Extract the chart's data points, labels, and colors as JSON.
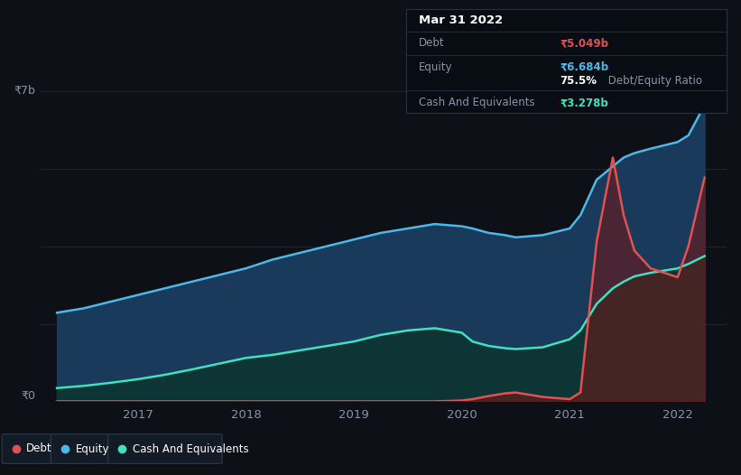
{
  "bg_color": "#0d1117",
  "plot_bg_color": "#0d1117",
  "ylabel_7b": "₹7b",
  "ylabel_0": "₹0",
  "x_ticks": [
    2017,
    2018,
    2019,
    2020,
    2021,
    2022
  ],
  "xlim": [
    2016.1,
    2022.45
  ],
  "ylim": [
    0,
    7.5
  ],
  "debt_color": "#e05252",
  "equity_color": "#4db8e8",
  "cash_color": "#40e0c0",
  "equity_fill_color": "#1a3a5c",
  "cash_fill_color": "#0d3535",
  "debt_fill_color": "#6b1a1a",
  "grid_color": "#252d3d",
  "info_box_bg": "#080d14",
  "info_box_border": "#2a3040",
  "info_title": "Mar 31 2022",
  "info_debt_label": "Debt",
  "info_debt_value": "₹5.049b",
  "info_equity_label": "Equity",
  "info_equity_value": "₹6.684b",
  "info_ratio_bold": "75.5%",
  "info_ratio_rest": " Debt/Equity Ratio",
  "info_cash_label": "Cash And Equivalents",
  "info_cash_value": "₹3.278b",
  "legend_debt": "Debt",
  "legend_equity": "Equity",
  "legend_cash": "Cash And Equivalents",
  "time_x": [
    2016.25,
    2016.5,
    2016.75,
    2017.0,
    2017.25,
    2017.5,
    2017.75,
    2018.0,
    2018.25,
    2018.5,
    2018.75,
    2019.0,
    2019.25,
    2019.5,
    2019.75,
    2020.0,
    2020.1,
    2020.25,
    2020.4,
    2020.5,
    2020.75,
    2021.0,
    2021.1,
    2021.25,
    2021.4,
    2021.5,
    2021.6,
    2021.75,
    2022.0,
    2022.1,
    2022.25
  ],
  "equity_y": [
    2.0,
    2.1,
    2.25,
    2.4,
    2.55,
    2.7,
    2.85,
    3.0,
    3.2,
    3.35,
    3.5,
    3.65,
    3.8,
    3.9,
    4.0,
    3.95,
    3.9,
    3.8,
    3.75,
    3.7,
    3.75,
    3.9,
    4.2,
    5.0,
    5.3,
    5.5,
    5.6,
    5.7,
    5.85,
    6.0,
    6.684
  ],
  "cash_y": [
    0.3,
    0.35,
    0.42,
    0.5,
    0.6,
    0.72,
    0.85,
    0.98,
    1.05,
    1.15,
    1.25,
    1.35,
    1.5,
    1.6,
    1.65,
    1.55,
    1.35,
    1.25,
    1.2,
    1.18,
    1.22,
    1.4,
    1.6,
    2.2,
    2.55,
    2.7,
    2.82,
    2.9,
    3.0,
    3.1,
    3.278
  ],
  "debt_y": [
    0.0,
    0.0,
    0.0,
    0.0,
    0.0,
    0.0,
    0.0,
    0.0,
    0.0,
    0.0,
    0.0,
    0.0,
    0.0,
    0.0,
    0.0,
    0.02,
    0.05,
    0.12,
    0.18,
    0.2,
    0.1,
    0.05,
    0.2,
    3.6,
    5.5,
    4.2,
    3.4,
    3.0,
    2.8,
    3.5,
    5.049
  ]
}
